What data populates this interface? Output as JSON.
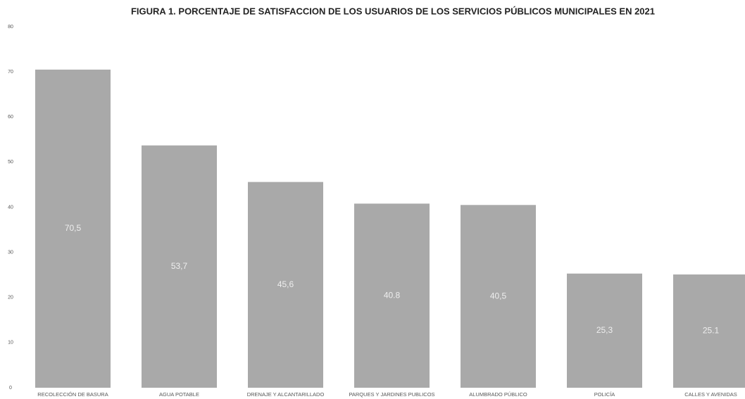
{
  "chart_data": {
    "type": "bar",
    "title": "FIGURA 1. PORCENTAJE DE SATISFACCION DE LOS USUARIOS DE LOS SERVICIOS PÚBLICOS MUNICIPALES EN 2021",
    "categories": [
      "RECOLECCIÓN DE BASURA",
      "AGUA POTABLE",
      "DRENAJE Y ALCANTARILLADO",
      "PARQUES Y JARDINES PUBLICOS",
      "ALUMBRADO PÚBLICO",
      "POLICÍA",
      "CALLES Y AVENIDAS"
    ],
    "values": [
      70.5,
      53.7,
      45.6,
      40.8,
      40.5,
      25.3,
      25.1
    ],
    "value_labels": [
      "70,5",
      "53,7",
      "45,6",
      "40.8",
      "40,5",
      "25,3",
      "25.1"
    ],
    "color": "#a9a9a9",
    "ylim": [
      0,
      80
    ],
    "yticks": [
      0,
      10,
      20,
      30,
      40,
      50,
      60,
      70,
      80
    ],
    "grid": false
  }
}
